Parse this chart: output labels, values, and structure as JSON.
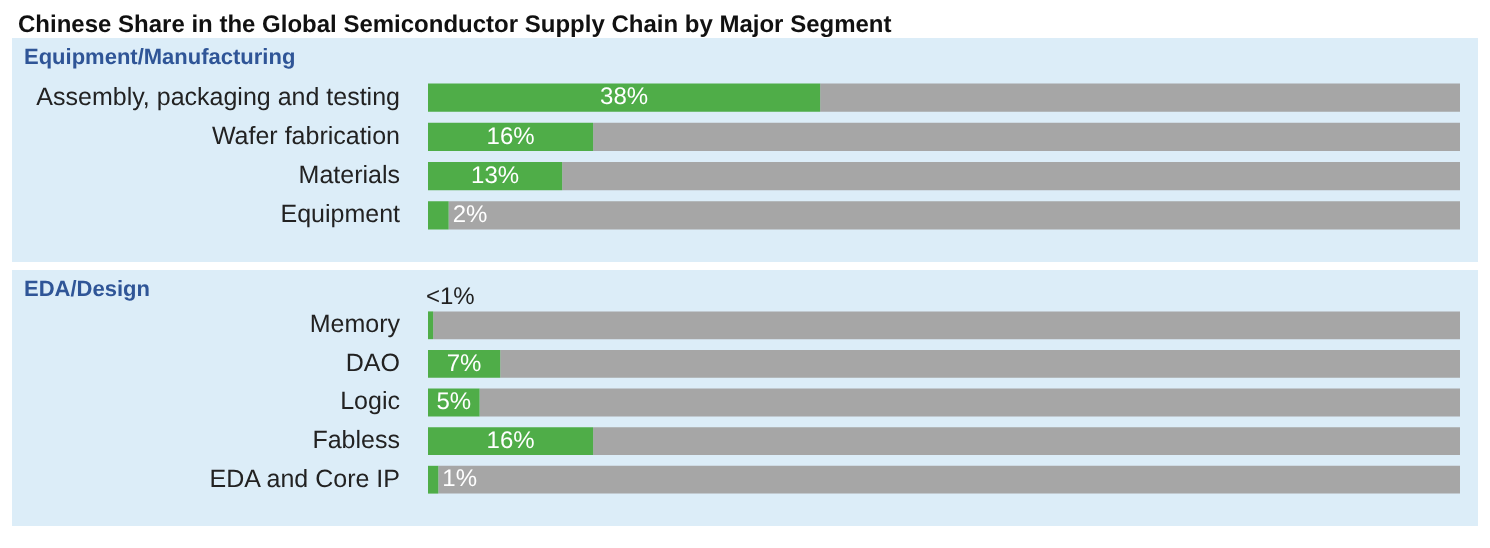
{
  "chart_data": [
    {
      "type": "bar",
      "orientation": "horizontal",
      "stacked": true,
      "title": "Chinese Share in the Global Semiconductor Supply Chain by Major Segment",
      "subtitle": "Equipment/Manufacturing",
      "categories": [
        "Assembly, packaging and testing",
        "Wafer fabrication",
        "Materials",
        "Equipment"
      ],
      "series": [
        {
          "color": "#4fad48",
          "values": [
            38,
            16,
            13,
            2
          ],
          "value_labels": [
            "38%",
            "16%",
            "13%",
            "2%"
          ]
        },
        {
          "color": "#a6a6a6",
          "values": [
            62,
            84,
            87,
            98
          ]
        }
      ],
      "xlim": [
        0,
        100
      ],
      "tick_labels": "y"
    },
    {
      "type": "bar",
      "orientation": "horizontal",
      "stacked": true,
      "subtitle": "EDA/Design",
      "categories": [
        "Memory",
        "DAO",
        "Logic",
        "Fabless",
        "EDA and Core IP"
      ],
      "series": [
        {
          "color": "#4fad48",
          "values": [
            0.5,
            7,
            5,
            16,
            1
          ],
          "value_labels": [
            "<1%",
            "7%",
            "5%",
            "16%",
            "1%"
          ]
        },
        {
          "color": "#a6a6a6",
          "values": [
            99.5,
            93,
            95,
            84,
            99
          ]
        }
      ],
      "xlim": [
        0,
        100
      ],
      "tick_labels": "y"
    }
  ]
}
